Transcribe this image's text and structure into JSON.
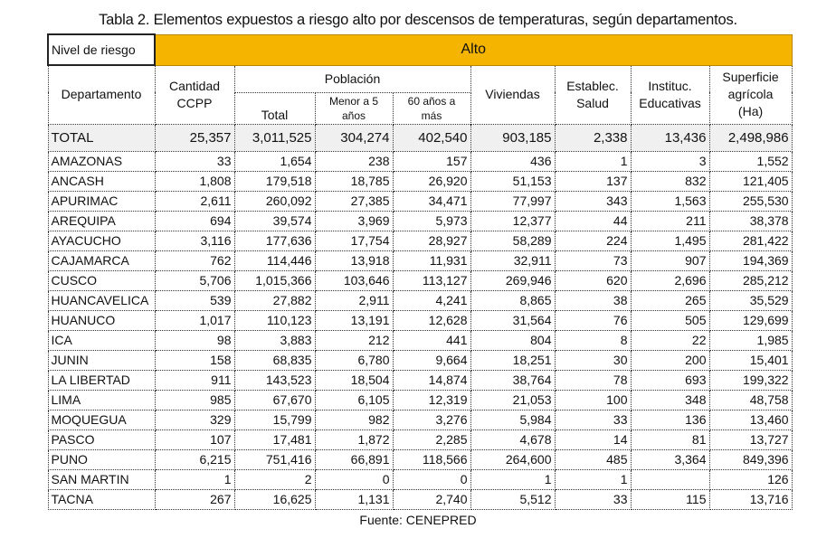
{
  "caption": "Tabla 2. Elementos expuestos a riesgo alto por descensos de temperaturas, según departamentos.",
  "risk_label": "Nivel de riesgo",
  "risk_value": "Alto",
  "headers": {
    "departamento": "Departamento",
    "cantidad": "Cantidad CCPP",
    "poblacion": "Población",
    "total": "Total",
    "menor5": "Menor a 5 años",
    "mayor60": "60 años a más",
    "viviendas": "Viviendas",
    "salud": "Establec. Salud",
    "educativas": "Instituc. Educativas",
    "superficie": "Superficie agrícola (Ha)"
  },
  "total_row": [
    "TOTAL",
    "25,357",
    "3,011,525",
    "304,274",
    "402,540",
    "903,185",
    "2,338",
    "13,436",
    "2,498,986"
  ],
  "rows": [
    [
      "AMAZONAS",
      "33",
      "1,654",
      "238",
      "157",
      "436",
      "1",
      "3",
      "1,552"
    ],
    [
      "ANCASH",
      "1,808",
      "179,518",
      "18,785",
      "26,920",
      "51,153",
      "137",
      "832",
      "121,405"
    ],
    [
      "APURIMAC",
      "2,611",
      "260,092",
      "27,385",
      "34,471",
      "77,997",
      "343",
      "1,563",
      "255,530"
    ],
    [
      "AREQUIPA",
      "694",
      "39,574",
      "3,969",
      "5,973",
      "12,377",
      "44",
      "211",
      "38,378"
    ],
    [
      "AYACUCHO",
      "3,116",
      "177,636",
      "17,754",
      "28,927",
      "58,289",
      "224",
      "1,495",
      "281,422"
    ],
    [
      "CAJAMARCA",
      "762",
      "114,446",
      "13,918",
      "11,931",
      "32,911",
      "73",
      "907",
      "194,369"
    ],
    [
      "CUSCO",
      "5,706",
      "1,015,366",
      "103,646",
      "113,127",
      "269,946",
      "620",
      "2,696",
      "285,212"
    ],
    [
      "HUANCAVELICA",
      "539",
      "27,882",
      "2,911",
      "4,241",
      "8,865",
      "38",
      "265",
      "35,529"
    ],
    [
      "HUANUCO",
      "1,017",
      "110,123",
      "13,191",
      "12,628",
      "31,564",
      "76",
      "505",
      "129,699"
    ],
    [
      "ICA",
      "98",
      "3,883",
      "212",
      "441",
      "804",
      "8",
      "22",
      "1,985"
    ],
    [
      "JUNIN",
      "158",
      "68,835",
      "6,780",
      "9,664",
      "18,251",
      "30",
      "200",
      "15,401"
    ],
    [
      "LA LIBERTAD",
      "911",
      "143,523",
      "18,504",
      "14,874",
      "38,764",
      "78",
      "693",
      "199,322"
    ],
    [
      "LIMA",
      "985",
      "67,670",
      "6,105",
      "12,319",
      "21,053",
      "100",
      "348",
      "48,758"
    ],
    [
      "MOQUEGUA",
      "329",
      "15,799",
      "982",
      "3,276",
      "5,984",
      "33",
      "136",
      "13,460"
    ],
    [
      "PASCO",
      "107",
      "17,481",
      "1,872",
      "2,285",
      "4,678",
      "14",
      "81",
      "13,727"
    ],
    [
      "PUNO",
      "6,215",
      "751,416",
      "66,891",
      "118,566",
      "264,600",
      "485",
      "3,364",
      "849,396"
    ],
    [
      "SAN MARTIN",
      "1",
      "2",
      "0",
      "0",
      "1",
      "1",
      "",
      "126"
    ],
    [
      "TACNA",
      "267",
      "16,625",
      "1,131",
      "2,740",
      "5,512",
      "33",
      "115",
      "13,716"
    ]
  ],
  "source": "Fuente: CENEPRED"
}
